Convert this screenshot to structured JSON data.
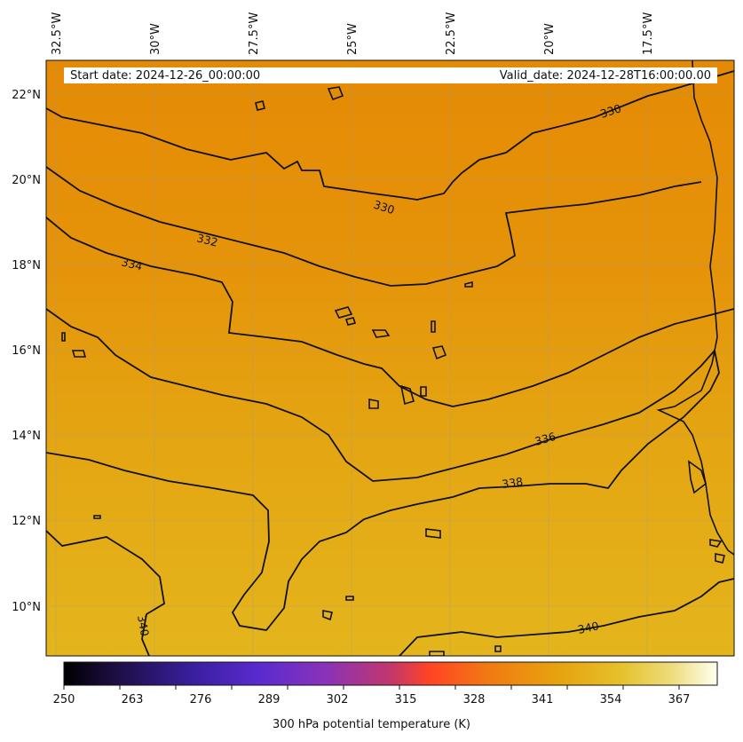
{
  "header": {
    "start_date": "Start date: 2024-12-26_00:00:00",
    "valid_date": "Valid_date: 2024-12-28T16:00:00.00"
  },
  "longitude_labels": [
    "32.5°W",
    "30°W",
    "27.5°W",
    "25°W",
    "22.5°W",
    "20°W",
    "17.5°W"
  ],
  "latitude_labels": [
    "22°N",
    "20°N",
    "18°N",
    "16°N",
    "14°N",
    "12°N",
    "10°N"
  ],
  "contour_labels": {
    "c330a": "330",
    "c330b": "330",
    "c332": "332",
    "c334": "334",
    "c336": "336",
    "c338": "338",
    "c340a": "340",
    "c340b": "340"
  },
  "colorbar": {
    "label": "300 hPa potential temperature (K)",
    "ticks": [
      "250",
      "263",
      "276",
      "289",
      "302",
      "315",
      "328",
      "341",
      "354",
      "367"
    ],
    "colors": [
      "#000000",
      "#1e0e44",
      "#3a1fa0",
      "#5a2bd0",
      "#8a32b8",
      "#c2376c",
      "#ff4425",
      "#f27a12",
      "#e6a40e",
      "#e6c02a",
      "#eedc7c",
      "#fffff0"
    ]
  }
}
